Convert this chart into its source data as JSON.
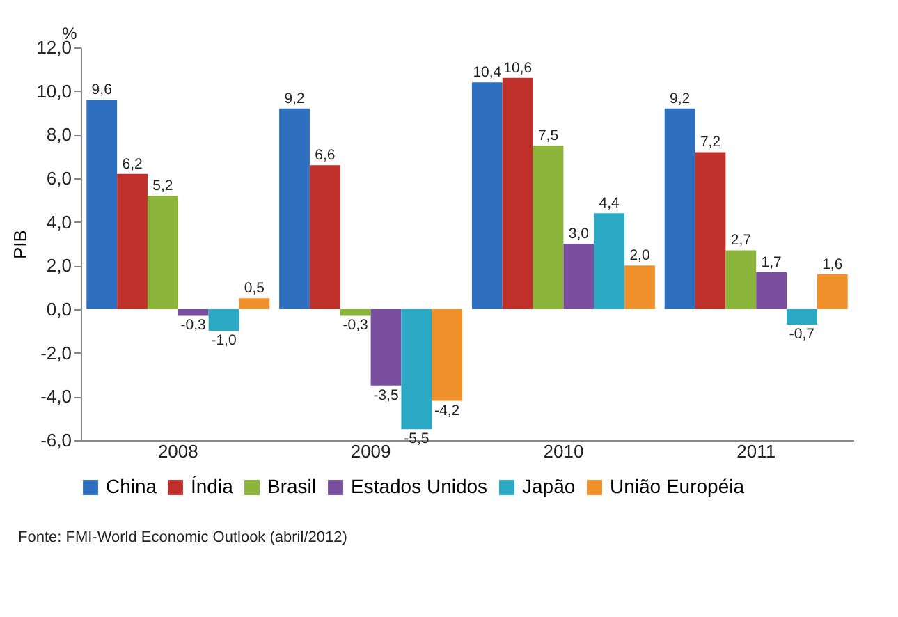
{
  "chart_data": {
    "type": "bar",
    "ylabel": "PIB",
    "categories": [
      "2008",
      "2009",
      "2010",
      "2011"
    ],
    "series": [
      {
        "name": "China",
        "color": "#2e6fc0",
        "values": [
          9.6,
          9.2,
          10.4,
          9.2
        ],
        "value_labels": [
          "9,6",
          "9,2",
          "10,4",
          "9,2"
        ]
      },
      {
        "name": "Índia",
        "color": "#c0302a",
        "values": [
          6.2,
          6.6,
          10.6,
          7.2
        ],
        "value_labels": [
          "6,2",
          "6,6",
          "10,6",
          "7,2"
        ]
      },
      {
        "name": "Brasil",
        "color": "#8ab43a",
        "values": [
          5.2,
          -0.3,
          7.5,
          2.7
        ],
        "value_labels": [
          "5,2",
          "-0,3",
          "7,5",
          "2,7"
        ]
      },
      {
        "name": "Estados Unidos",
        "color": "#7b4fa0",
        "values": [
          -0.3,
          -3.5,
          3.0,
          1.7
        ],
        "value_labels": [
          "-0,3",
          "-3,5",
          "3,0",
          "1,7"
        ]
      },
      {
        "name": "Japão",
        "color": "#2aa8c4",
        "values": [
          -1.0,
          -5.5,
          4.4,
          -0.7
        ],
        "value_labels": [
          "-1,0",
          "-5,5",
          "4,4",
          "-0,7"
        ]
      },
      {
        "name": "União Européia",
        "color": "#f0902a",
        "values": [
          0.5,
          -4.2,
          2.0,
          1.6
        ],
        "value_labels": [
          "0,5",
          "-4,2",
          "2,0",
          "1,6"
        ]
      }
    ],
    "ylim": [
      -6,
      12
    ],
    "yticks": [
      {
        "value": -6,
        "label": "-6,0"
      },
      {
        "value": -4,
        "label": "-4,0"
      },
      {
        "value": -2,
        "label": "-2,0"
      },
      {
        "value": 0,
        "label": "0,0"
      },
      {
        "value": 2,
        "label": "2,0"
      },
      {
        "value": 4,
        "label": "4,0"
      },
      {
        "value": 6,
        "label": "6,0"
      },
      {
        "value": 8,
        "label": "8,0"
      },
      {
        "value": 10,
        "label": "10,0"
      },
      {
        "value": 12,
        "label": "12,0"
      }
    ],
    "grid": false,
    "legend": "bottom",
    "annotations": [
      "%",
      "Fonte: FMI-World Economic Outlook (abril/2012)"
    ]
  }
}
